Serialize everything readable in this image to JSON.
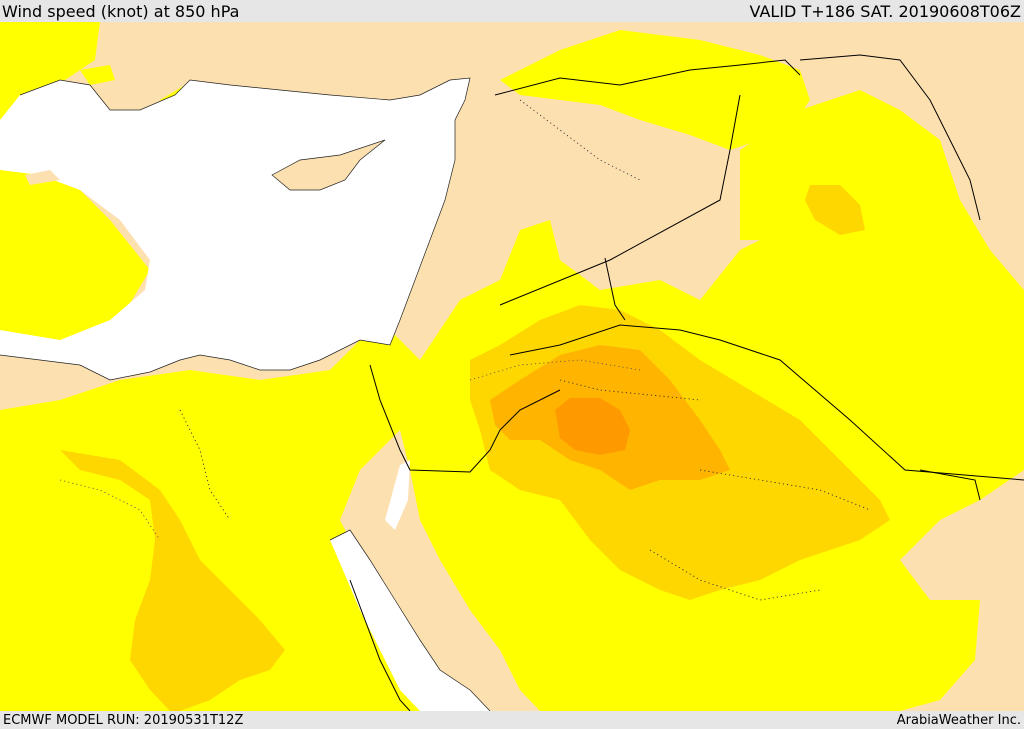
{
  "header": {
    "title": "Wind speed (knot) at 850 hPa",
    "valid_time": "VALID T+186 SAT. 20190608T06Z"
  },
  "footer": {
    "model_run": "ECMWF MODEL RUN: 20190531T12Z",
    "credit": "ArabiaWeather Inc."
  },
  "map": {
    "projection": "regional lat/lon, Eastern Mediterranean / Middle East",
    "colors": {
      "sea": "#ffffff",
      "land_calm": "#fde0b0",
      "band_1": "#ffff00",
      "band_2": "#ffd700",
      "band_3": "#ffb400",
      "band_4": "#ff9900",
      "borders": "#000000"
    },
    "layers": [
      "sea-mask",
      "wind-speed-shading",
      "coastlines",
      "country-borders",
      "admin-boundaries"
    ]
  }
}
